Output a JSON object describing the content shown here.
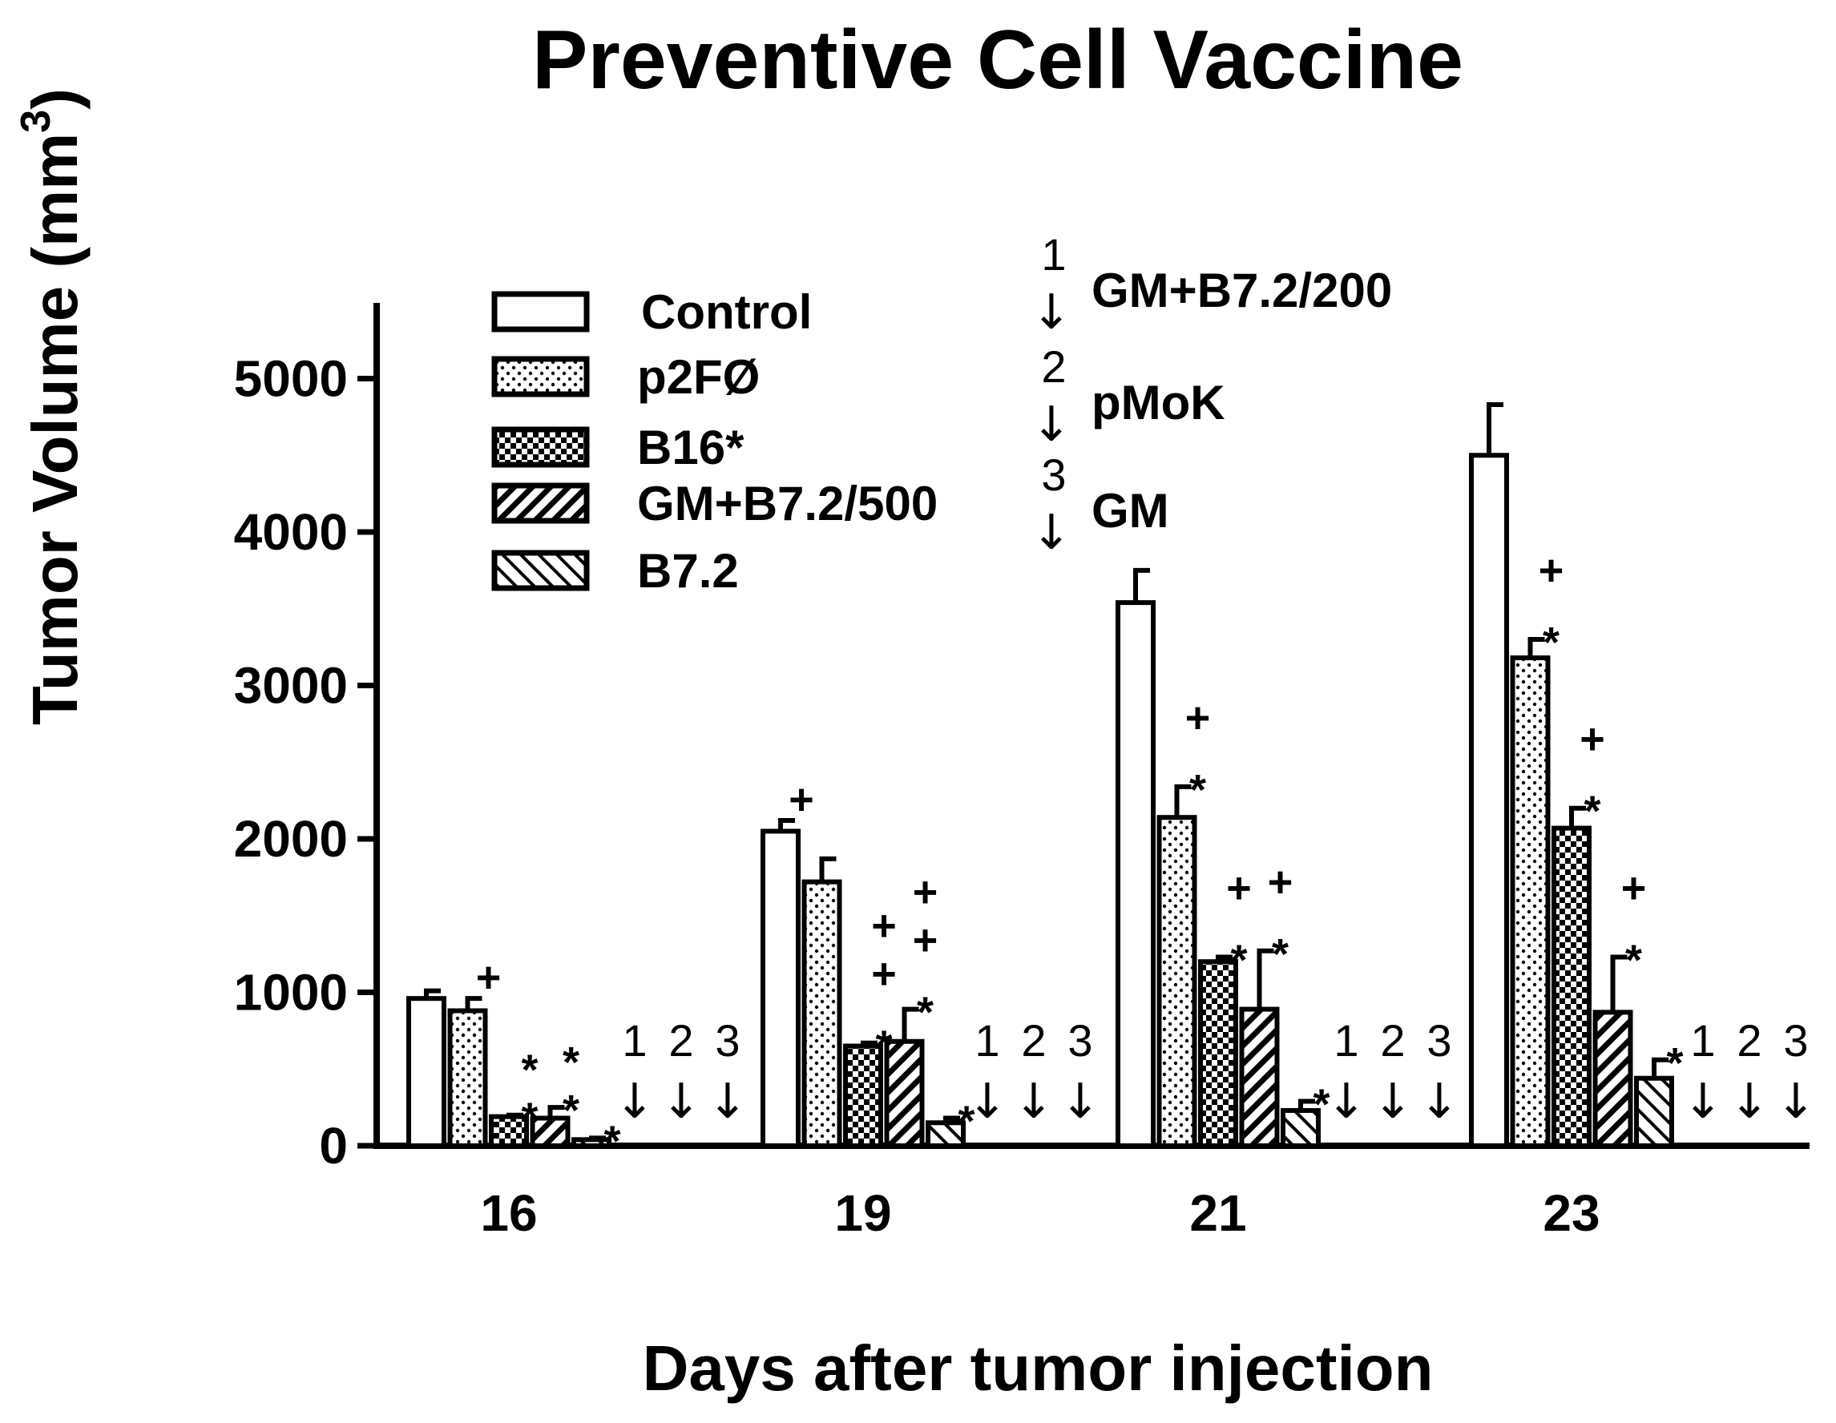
{
  "chart_data": {
    "type": "bar",
    "title": "Preventive Cell Vaccine",
    "xlabel": "Days after tumor injection",
    "ylabel": "Tumor Volume (mm",
    "ylabel_sup": "3",
    "ylabel_close": ")",
    "ylim": [
      0,
      5500
    ],
    "yticks": [
      0,
      1000,
      2000,
      3000,
      4000,
      5000
    ],
    "categories": [
      "16",
      "19",
      "21",
      "23"
    ],
    "series": [
      {
        "name": "Control",
        "pattern": "none",
        "values": [
          960,
          2050,
          3540,
          4500
        ],
        "errors": [
          50,
          70,
          210,
          330
        ]
      },
      {
        "name": "p2FØ",
        "pattern": "dots",
        "values": [
          880,
          1720,
          2140,
          3180
        ],
        "errors": [
          80,
          150,
          200,
          120
        ]
      },
      {
        "name": "B16*",
        "pattern": "checker",
        "values": [
          190,
          650,
          1200,
          2070
        ],
        "errors": [
          10,
          20,
          30,
          130
        ]
      },
      {
        "name": "GM+B7.2/500",
        "pattern": "diagonal-thick",
        "values": [
          180,
          680,
          890,
          870
        ],
        "errors": [
          70,
          210,
          380,
          360
        ]
      },
      {
        "name": "B7.2",
        "pattern": "diagonal-thin",
        "values": [
          40,
          150,
          230,
          440
        ],
        "errors": [
          10,
          30,
          60,
          120
        ]
      }
    ],
    "significance_marks": [
      {
        "category": "16",
        "series": "p2FØ",
        "marks": [
          "+"
        ]
      },
      {
        "category": "16",
        "series": "B16*",
        "marks": [
          "*",
          "*"
        ]
      },
      {
        "category": "16",
        "series": "GM+B7.2/500",
        "marks": [
          "*",
          "*"
        ]
      },
      {
        "category": "16",
        "series": "B7.2",
        "marks": [
          "*"
        ]
      },
      {
        "category": "19",
        "series": "Control",
        "marks": [
          "+"
        ]
      },
      {
        "category": "19",
        "series": "B16*",
        "marks": [
          "+",
          "+",
          "*"
        ]
      },
      {
        "category": "19",
        "series": "GM+B7.2/500",
        "marks": [
          "+",
          "+",
          "*"
        ]
      },
      {
        "category": "19",
        "series": "B7.2",
        "marks": [
          "*"
        ]
      },
      {
        "category": "21",
        "series": "p2FØ",
        "marks": [
          "+",
          "*"
        ]
      },
      {
        "category": "21",
        "series": "B16*",
        "marks": [
          "+",
          "*"
        ]
      },
      {
        "category": "21",
        "series": "GM+B7.2/500",
        "marks": [
          "+",
          "*"
        ]
      },
      {
        "category": "21",
        "series": "B7.2",
        "marks": [
          "*"
        ]
      },
      {
        "category": "23",
        "series": "p2FØ",
        "marks": [
          "+",
          "*"
        ]
      },
      {
        "category": "23",
        "series": "B16*",
        "marks": [
          "+",
          "*"
        ]
      },
      {
        "category": "23",
        "series": "GM+B7.2/500",
        "marks": [
          "+",
          "*"
        ]
      },
      {
        "category": "23",
        "series": "B7.2",
        "marks": [
          "*"
        ]
      }
    ],
    "treatment_key": [
      {
        "number": "1",
        "label": "GM+B7.2/200"
      },
      {
        "number": "2",
        "label": "pMoK"
      },
      {
        "number": "3",
        "label": "GM"
      }
    ],
    "treatment_groups_after_days": [
      "16",
      "19",
      "21",
      "23"
    ],
    "arrow_glyph": "↓"
  }
}
